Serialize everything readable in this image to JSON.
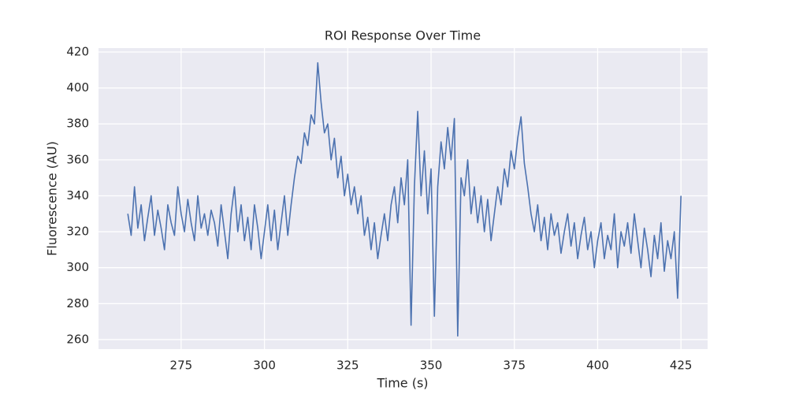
{
  "chart_data": {
    "type": "line",
    "title": "ROI Response Over Time",
    "xlabel": "Time (s)",
    "ylabel": "Fluorescence (AU)",
    "x": [
      259,
      260,
      261,
      262,
      263,
      264,
      265,
      266,
      267,
      268,
      269,
      270,
      271,
      272,
      273,
      274,
      275,
      276,
      277,
      278,
      279,
      280,
      281,
      282,
      283,
      284,
      285,
      286,
      287,
      288,
      289,
      290,
      291,
      292,
      293,
      294,
      295,
      296,
      297,
      298,
      299,
      300,
      301,
      302,
      303,
      304,
      305,
      306,
      307,
      308,
      309,
      310,
      311,
      312,
      313,
      314,
      315,
      316,
      317,
      318,
      319,
      320,
      321,
      322,
      323,
      324,
      325,
      326,
      327,
      328,
      329,
      330,
      331,
      332,
      333,
      334,
      335,
      336,
      337,
      338,
      339,
      340,
      341,
      342,
      343,
      344,
      345,
      346,
      347,
      348,
      349,
      350,
      351,
      352,
      353,
      354,
      355,
      356,
      357,
      358,
      359,
      360,
      361,
      362,
      363,
      364,
      365,
      366,
      367,
      368,
      369,
      370,
      371,
      372,
      373,
      374,
      375,
      376,
      377,
      378,
      379,
      380,
      381,
      382,
      383,
      384,
      385,
      386,
      387,
      388,
      389,
      390,
      391,
      392,
      393,
      394,
      395,
      396,
      397,
      398,
      399,
      400,
      401,
      402,
      403,
      404,
      405,
      406,
      407,
      408,
      409,
      410,
      411,
      412,
      413,
      414,
      415,
      416,
      417,
      418,
      419,
      420,
      421,
      422,
      423,
      424,
      425
    ],
    "series": [
      {
        "name": "ROI",
        "color": "#4c72b0",
        "values": [
          330,
          318,
          345,
          322,
          335,
          315,
          328,
          340,
          318,
          332,
          322,
          310,
          335,
          325,
          318,
          345,
          330,
          320,
          338,
          325,
          315,
          340,
          322,
          330,
          318,
          332,
          325,
          312,
          335,
          320,
          305,
          330,
          345,
          320,
          335,
          315,
          328,
          310,
          335,
          322,
          305,
          320,
          335,
          315,
          332,
          310,
          325,
          340,
          318,
          335,
          350,
          362,
          358,
          375,
          368,
          385,
          380,
          414,
          392,
          375,
          380,
          360,
          372,
          350,
          362,
          340,
          352,
          335,
          345,
          330,
          340,
          318,
          328,
          310,
          325,
          305,
          318,
          330,
          315,
          335,
          345,
          325,
          350,
          335,
          360,
          268,
          345,
          387,
          340,
          365,
          330,
          355,
          273,
          345,
          370,
          355,
          378,
          360,
          383,
          262,
          350,
          340,
          360,
          330,
          345,
          325,
          340,
          320,
          338,
          315,
          330,
          345,
          335,
          355,
          345,
          365,
          355,
          372,
          384,
          358,
          345,
          330,
          320,
          335,
          315,
          328,
          310,
          330,
          318,
          325,
          308,
          320,
          330,
          312,
          325,
          305,
          318,
          328,
          310,
          320,
          300,
          315,
          325,
          305,
          318,
          310,
          330,
          300,
          320,
          312,
          325,
          308,
          330,
          315,
          300,
          322,
          310,
          295,
          318,
          305,
          325,
          298,
          315,
          305,
          320,
          283,
          340
        ]
      }
    ],
    "xlim": [
      250.2,
      433.0
    ],
    "ylim": [
      254.7,
      422.2
    ],
    "xticks": [
      275,
      300,
      325,
      350,
      375,
      400,
      425
    ],
    "yticks": [
      260,
      280,
      300,
      320,
      340,
      360,
      380,
      400,
      420
    ],
    "grid": true
  }
}
